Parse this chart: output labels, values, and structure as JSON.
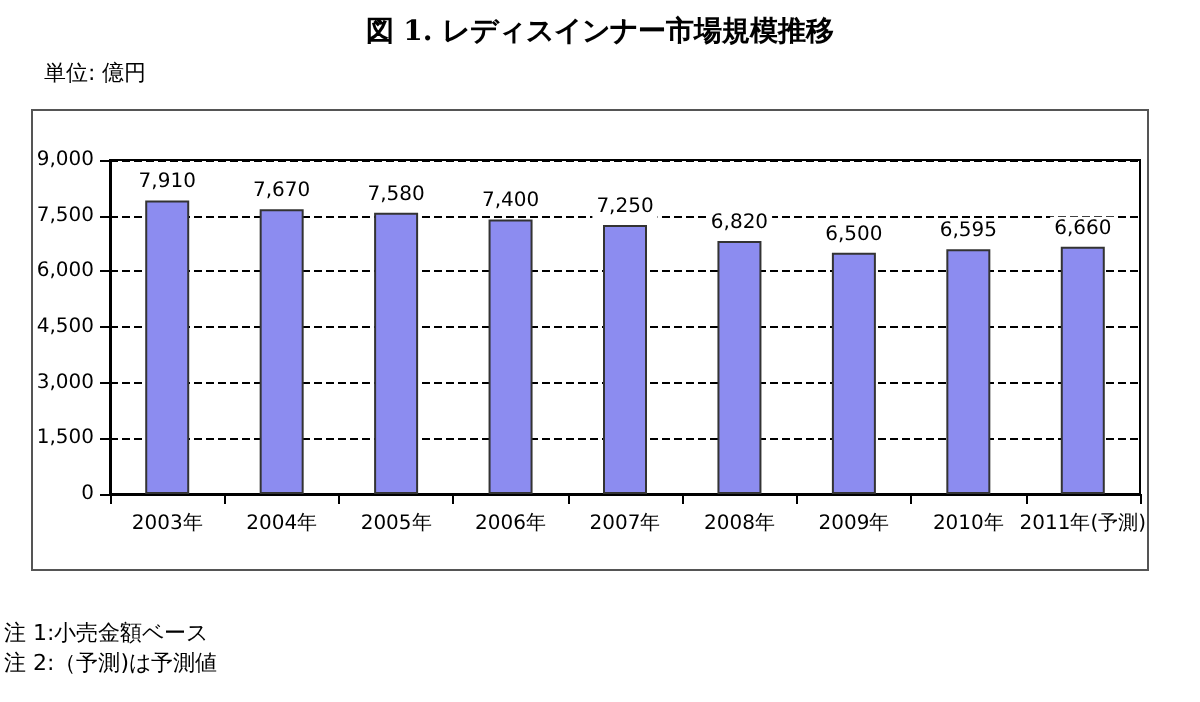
{
  "chart_data": {
    "type": "bar",
    "title": "図 1. レディスインナー市場規模推移",
    "ylabel": "単位: 億円",
    "categories": [
      "2003年",
      "2004年",
      "2005年",
      "2006年",
      "2007年",
      "2008年",
      "2009年",
      "2010年",
      "2011年(予測)"
    ],
    "values": [
      7910,
      7670,
      7580,
      7400,
      7250,
      6820,
      6500,
      6595,
      6660
    ],
    "value_labels": [
      "7,910",
      "7,670",
      "7,580",
      "7,400",
      "7,250",
      "6,820",
      "6,500",
      "6,595",
      "6,660"
    ],
    "color": "#8c8cf0",
    "ylim": [
      0,
      9000
    ],
    "yticks": [
      {
        "value": 0,
        "label": "0"
      },
      {
        "value": 1500,
        "label": "1,500"
      },
      {
        "value": 3000,
        "label": "3,000"
      },
      {
        "value": 4500,
        "label": "4,500"
      },
      {
        "value": 6000,
        "label": "6,000"
      },
      {
        "value": 7500,
        "label": "7,500"
      },
      {
        "value": 9000,
        "label": "9,000"
      }
    ],
    "grid": "y",
    "annotations": [
      "注 1:小売金額ベース",
      "注 2:（予測)は予測値"
    ]
  }
}
